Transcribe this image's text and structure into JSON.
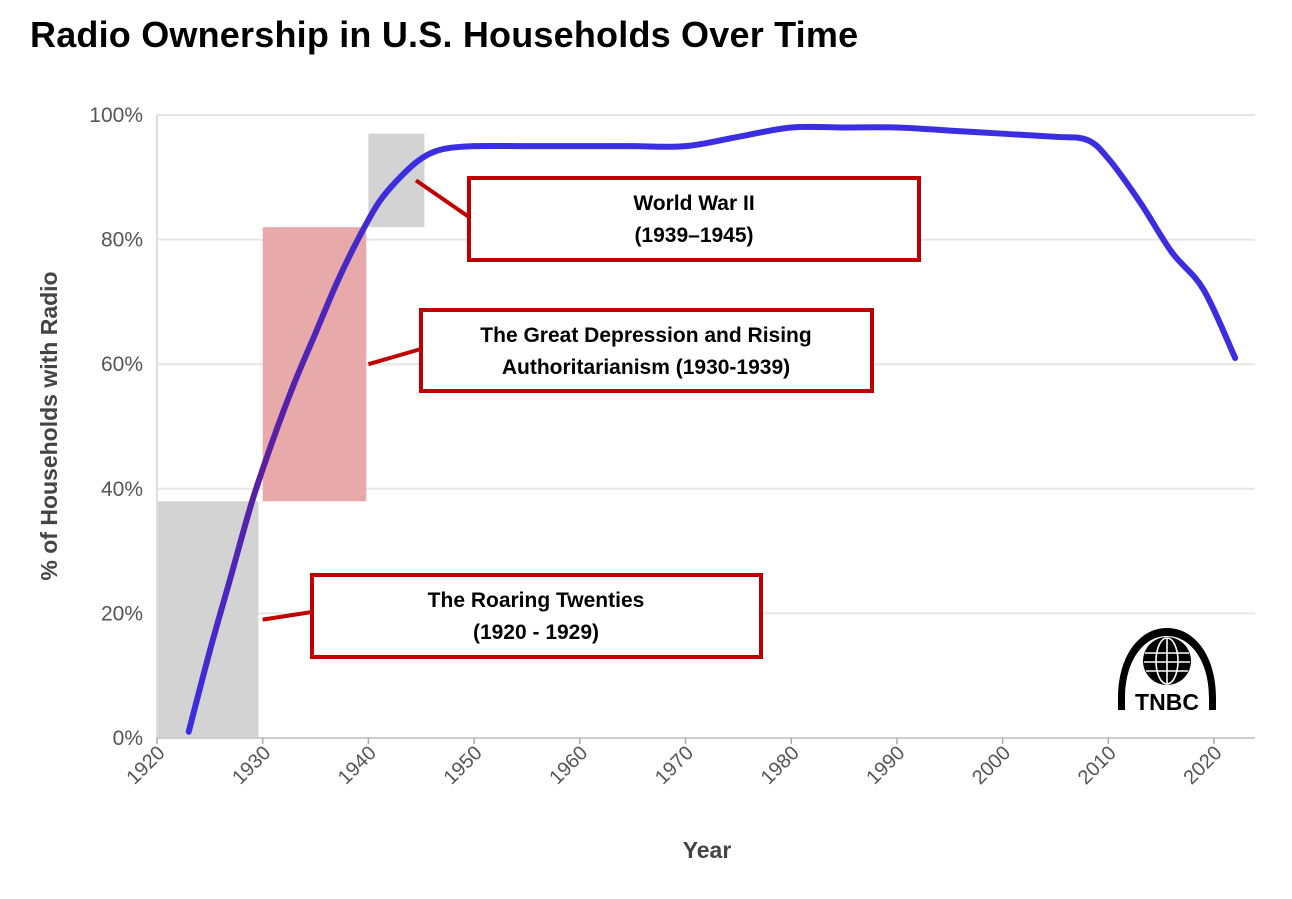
{
  "title": "Radio Ownership in U.S. Households Over Time",
  "logo": {
    "text": "TNBC",
    "icon": "globe-arch-logo-icon"
  },
  "colors": {
    "line": "#3b2ee0",
    "line_early": "#5a1f9e",
    "shade_gray": "#d3d3d3",
    "shade_red": "#e8a9ab",
    "box_border": "#c00000",
    "grid": "#e6e6e6"
  },
  "chart_data": {
    "type": "line",
    "title": "Radio Ownership in U.S. Households Over Time",
    "xlabel": "Year",
    "ylabel": "% of Households with Radio",
    "xlim": [
      1920,
      2024
    ],
    "ylim": [
      0,
      100
    ],
    "xticks": [
      1920,
      1930,
      1940,
      1950,
      1960,
      1970,
      1980,
      1990,
      2000,
      2010,
      2020
    ],
    "yticks": [
      0,
      20,
      40,
      60,
      80,
      100
    ],
    "ytick_labels": [
      "0%",
      "20%",
      "40%",
      "60%",
      "80%",
      "100%"
    ],
    "grid": true,
    "series": [
      {
        "x": [
          1923,
          1925,
          1927,
          1929,
          1931,
          1933,
          1935,
          1937,
          1939,
          1941,
          1943,
          1945,
          1947,
          1950,
          1955,
          1960,
          1965,
          1970,
          1975,
          1980,
          1985,
          1990,
          1995,
          2000,
          2005,
          2008,
          2010,
          2013,
          2016,
          2019,
          2022
        ],
        "y": [
          1,
          14,
          26,
          38,
          48,
          57,
          65,
          73,
          80,
          86,
          90,
          93,
          94.5,
          95,
          95,
          95,
          95,
          95,
          96.5,
          98,
          98,
          98,
          97.5,
          97,
          96.5,
          96,
          93,
          86,
          78,
          72,
          61
        ]
      }
    ],
    "shaded_regions": [
      {
        "x": [
          1920,
          1929.6
        ],
        "y": [
          0,
          38
        ],
        "color": "gray"
      },
      {
        "x": [
          1930,
          1939.8
        ],
        "y": [
          38,
          82
        ],
        "color": "red"
      },
      {
        "x": [
          1940,
          1945.3
        ],
        "y": [
          82,
          97
        ],
        "color": "gray"
      }
    ],
    "annotations": [
      {
        "lines": [
          "World War II",
          "(1939–1945)"
        ],
        "pointer": [
          1944.5,
          89.5
        ]
      },
      {
        "lines": [
          "The Great Depression and Rising",
          "Authoritarianism (1930-1939)"
        ],
        "pointer": [
          1940,
          60
        ]
      },
      {
        "lines": [
          "The Roaring Twenties",
          "(1920 - 1929)"
        ],
        "pointer": [
          1930,
          19
        ]
      }
    ]
  }
}
